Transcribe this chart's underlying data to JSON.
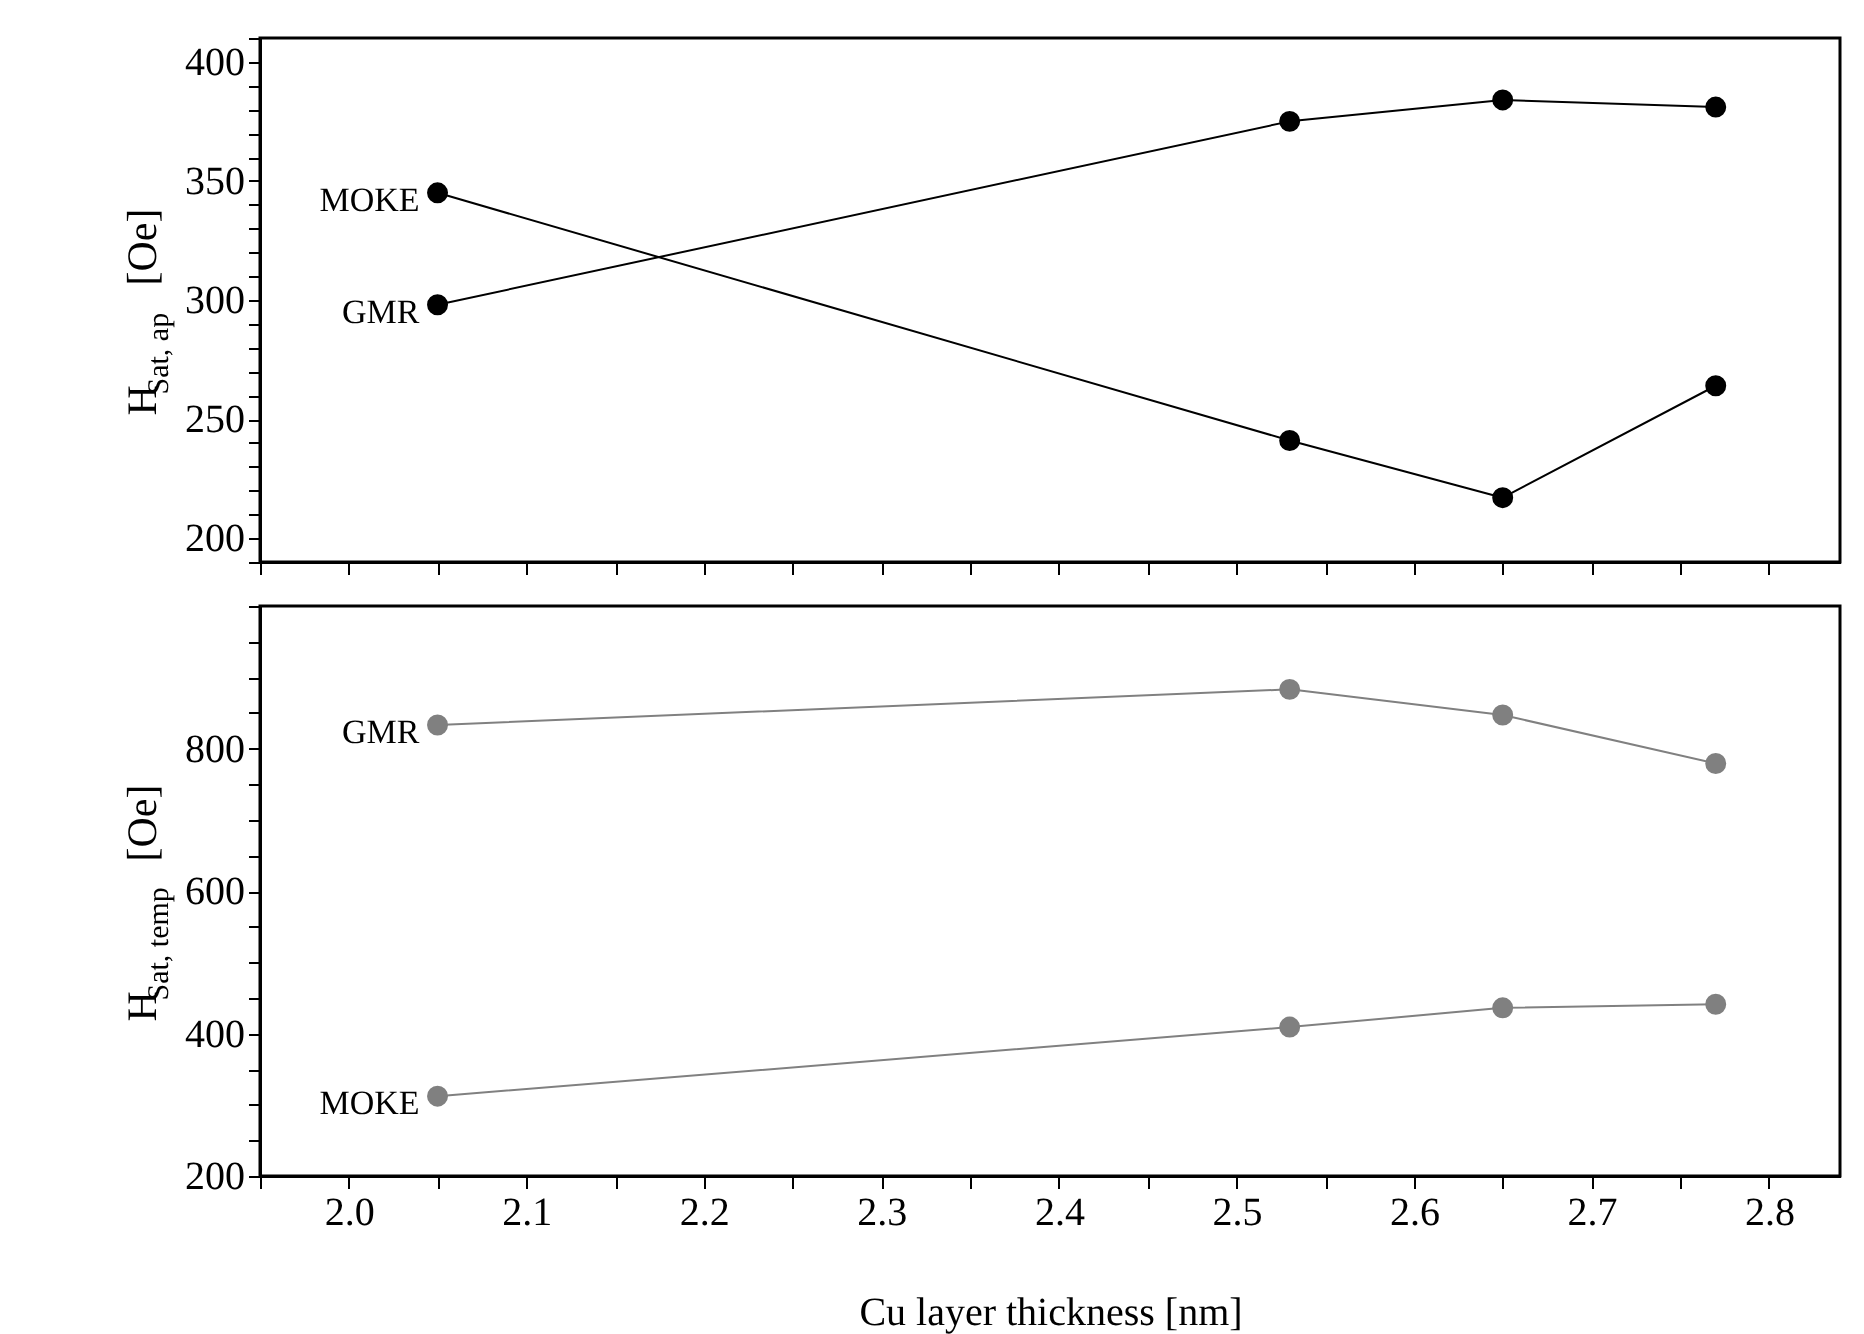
{
  "chart_data": [
    {
      "type": "line",
      "ylabel": "H$_{Sat, ap}$ [Oe]",
      "x": [
        2.05,
        2.53,
        2.65,
        2.77
      ],
      "marker": "circle",
      "tick_labels": "y",
      "series": [
        {
          "name": "MOKE",
          "color": "#000000",
          "values": [
            345,
            241,
            217,
            264
          ]
        },
        {
          "name": "GMR",
          "color": "#000000",
          "values": [
            298,
            375,
            384,
            381
          ]
        }
      ],
      "xlim": [
        1.95,
        2.84
      ],
      "xticks": [
        {
          "value": 1.95,
          "label": null
        },
        {
          "value": 2.0,
          "label": null
        },
        {
          "value": 2.05,
          "label": null
        },
        {
          "value": 2.1,
          "label": null
        },
        {
          "value": 2.15,
          "label": null
        },
        {
          "value": 2.2,
          "label": null
        },
        {
          "value": 2.25,
          "label": null
        },
        {
          "value": 2.3,
          "label": null
        },
        {
          "value": 2.35,
          "label": null
        },
        {
          "value": 2.4,
          "label": null
        },
        {
          "value": 2.45,
          "label": null
        },
        {
          "value": 2.5,
          "label": null
        },
        {
          "value": 2.55,
          "label": null
        },
        {
          "value": 2.6,
          "label": null
        },
        {
          "value": 2.65,
          "label": null
        },
        {
          "value": 2.7,
          "label": null
        },
        {
          "value": 2.75,
          "label": null
        },
        {
          "value": 2.8,
          "label": null
        }
      ],
      "ylim": [
        190,
        410
      ],
      "yticks": [
        {
          "value": 190,
          "label": null
        },
        200,
        {
          "value": 210,
          "label": null
        },
        {
          "value": 220,
          "label": null
        },
        {
          "value": 230,
          "label": null
        },
        {
          "value": 240,
          "label": null
        },
        250,
        {
          "value": 260,
          "label": null
        },
        {
          "value": 270,
          "label": null
        },
        {
          "value": 280,
          "label": null
        },
        {
          "value": 290,
          "label": null
        },
        300,
        {
          "value": 310,
          "label": null
        },
        {
          "value": 320,
          "label": null
        },
        {
          "value": 330,
          "label": null
        },
        {
          "value": 340,
          "label": null
        },
        350,
        {
          "value": 360,
          "label": null
        },
        {
          "value": 370,
          "label": null
        },
        {
          "value": 380,
          "label": null
        },
        {
          "value": 390,
          "label": null
        },
        400,
        {
          "value": 410,
          "label": null
        }
      ]
    },
    {
      "type": "line",
      "ylabel": "H$_{Sat, temp}$ [Oe]",
      "xlabel": "Cu layer thickness [nm]",
      "x": [
        2.05,
        2.53,
        2.65,
        2.77
      ],
      "marker": "circle",
      "series": [
        {
          "name": "GMR",
          "color": "#808080",
          "values": [
            833,
            883,
            847,
            779
          ]
        },
        {
          "name": "MOKE",
          "color": "#808080",
          "values": [
            312,
            409,
            436,
            441
          ]
        }
      ],
      "xlim": [
        1.95,
        2.84
      ],
      "xticks": [
        {
          "value": 1.95,
          "label": null
        },
        {
          "value": 2.0,
          "label": "2.0"
        },
        {
          "value": 2.05,
          "label": null
        },
        {
          "value": 2.1,
          "label": "2.1"
        },
        {
          "value": 2.15,
          "label": null
        },
        {
          "value": 2.2,
          "label": "2.2"
        },
        {
          "value": 2.25,
          "label": null
        },
        {
          "value": 2.3,
          "label": "2.3"
        },
        {
          "value": 2.35,
          "label": null
        },
        {
          "value": 2.4,
          "label": "2.4"
        },
        {
          "value": 2.45,
          "label": null
        },
        {
          "value": 2.5,
          "label": "2.5"
        },
        {
          "value": 2.55,
          "label": null
        },
        {
          "value": 2.6,
          "label": "2.6"
        },
        {
          "value": 2.65,
          "label": null
        },
        {
          "value": 2.7,
          "label": "2.7"
        },
        {
          "value": 2.75,
          "label": null
        },
        {
          "value": 2.8,
          "label": "2.8"
        }
      ],
      "ylim": [
        200,
        1000
      ],
      "yticks": [
        200,
        {
          "value": 250,
          "label": null
        },
        {
          "value": 300,
          "label": null
        },
        {
          "value": 350,
          "label": null
        },
        400,
        {
          "value": 450,
          "label": null
        },
        {
          "value": 500,
          "label": null
        },
        {
          "value": 550,
          "label": null
        },
        600,
        {
          "value": 650,
          "label": null
        },
        {
          "value": 700,
          "label": null
        },
        {
          "value": 750,
          "label": null
        },
        800,
        {
          "value": 850,
          "label": null
        },
        {
          "value": 900,
          "label": null
        },
        {
          "value": 950,
          "label": null
        },
        {
          "value": 1000,
          "label": null
        }
      ]
    }
  ]
}
